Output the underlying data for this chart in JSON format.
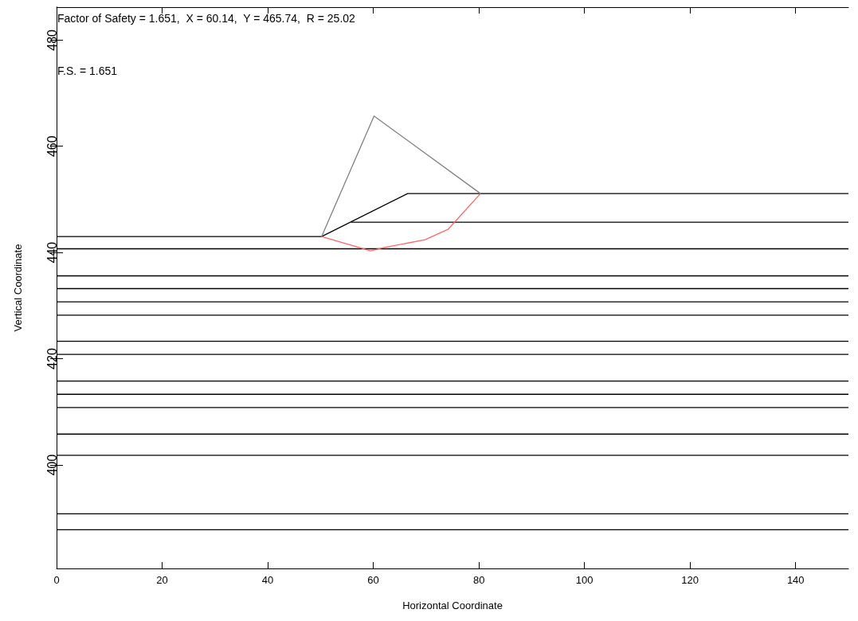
{
  "chart_data": {
    "type": "line",
    "xlabel": "Horizontal Coordinate",
    "ylabel": "Vertical Coordinate",
    "annotations": [
      "Factor of Safety = 1.651,  X = 60.14,  Y = 465.74,  R = 25.02",
      "F.S. = 1.651"
    ],
    "xlim": [
      0,
      150
    ],
    "xticks": [
      0,
      20,
      40,
      60,
      80,
      100,
      120,
      140
    ],
    "ylim": [
      380.5,
      486.2
    ],
    "yticks": [
      400,
      420,
      440,
      460,
      480
    ],
    "grid": false,
    "marker": "none",
    "line_style": "solid",
    "series": [
      {
        "color": "#000000",
        "x": [
          0,
          50.2,
          66.5,
          150
        ],
        "values": [
          443.0,
          443.0,
          451.1,
          451.1
        ]
      },
      {
        "color": "#000000",
        "x": [
          55.8,
          150
        ],
        "values": [
          445.7,
          445.7
        ]
      },
      {
        "color": "#000000",
        "x": [
          0,
          150
        ],
        "values": [
          440.7,
          440.7
        ]
      },
      {
        "color": "#000000",
        "x": [
          0,
          150
        ],
        "values": [
          435.6,
          435.6
        ]
      },
      {
        "color": "#000000",
        "x": [
          0,
          150
        ],
        "values": [
          433.2,
          433.2
        ]
      },
      {
        "color": "#000000",
        "x": [
          0,
          150
        ],
        "values": [
          430.7,
          430.7
        ]
      },
      {
        "color": "#000000",
        "x": [
          0,
          150
        ],
        "values": [
          428.2,
          428.2
        ]
      },
      {
        "color": "#000000",
        "x": [
          0,
          150
        ],
        "values": [
          423.3,
          423.3
        ]
      },
      {
        "color": "#000000",
        "x": [
          0,
          150
        ],
        "values": [
          420.8,
          420.8
        ]
      },
      {
        "color": "#000000",
        "x": [
          0,
          150
        ],
        "values": [
          415.8,
          415.8
        ]
      },
      {
        "color": "#000000",
        "x": [
          0,
          150
        ],
        "values": [
          413.3,
          413.3
        ]
      },
      {
        "color": "#000000",
        "x": [
          0,
          150
        ],
        "values": [
          410.8,
          410.8
        ]
      },
      {
        "color": "#000000",
        "x": [
          0,
          150
        ],
        "values": [
          405.8,
          405.8
        ]
      },
      {
        "color": "#000000",
        "x": [
          0,
          150
        ],
        "values": [
          401.8,
          401.8
        ]
      },
      {
        "color": "#000000",
        "x": [
          0,
          150
        ],
        "values": [
          390.8,
          390.8
        ]
      },
      {
        "color": "#000000",
        "x": [
          0,
          150
        ],
        "values": [
          387.8,
          387.8
        ]
      },
      {
        "color": "#808080",
        "x": [
          50.2,
          60.14,
          80.3
        ],
        "values": [
          443.0,
          465.7,
          451.1
        ]
      },
      {
        "color": "#ff6666",
        "x": [
          50.2,
          59.5,
          61.9,
          69.8,
          74.2,
          80.3
        ],
        "values": [
          443.0,
          440.3,
          440.9,
          442.4,
          444.4,
          451.1
        ]
      }
    ]
  }
}
